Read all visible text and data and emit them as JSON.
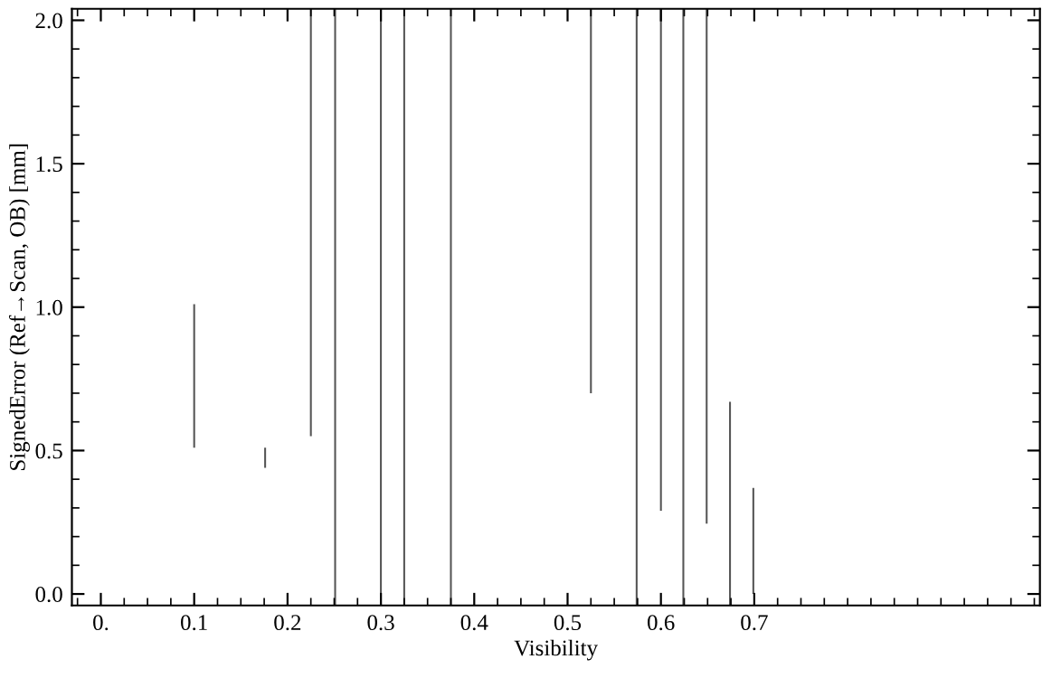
{
  "chart_data": {
    "type": "bar",
    "xlabel": "Visibility",
    "ylabel": "SignedError (Ref→Scan, OB) [mm]",
    "x": [
      0.1,
      0.176,
      0.225,
      0.251,
      0.3,
      0.325,
      0.375,
      0.525,
      0.574,
      0.6,
      0.624,
      0.649,
      0.674,
      0.699
    ],
    "base": [
      0.51,
      0.44,
      0.55,
      -0.04,
      -0.04,
      -0.04,
      -0.04,
      0.7,
      -0.04,
      0.29,
      -0.04,
      0.245,
      -0.04,
      0.0
    ],
    "values": [
      0.5,
      0.07,
      1.49,
      2.08,
      2.08,
      2.08,
      2.08,
      1.34,
      2.08,
      1.75,
      2.08,
      1.795,
      0.71,
      0.37
    ],
    "color": "#555555",
    "xlim": [
      -0.031,
      1.006
    ],
    "ylim": [
      -0.04,
      2.04
    ],
    "xticks": [
      {
        "value": 0,
        "label": "0."
      },
      0.1,
      0.2,
      0.3,
      0.4,
      0.5,
      0.6,
      0.7
    ],
    "yticks": [
      {
        "value": 0,
        "label": "0.0"
      },
      {
        "value": 0.5,
        "label": "0.5"
      },
      {
        "value": 1,
        "label": "1.0"
      },
      {
        "value": 1.5,
        "label": "1.5"
      },
      {
        "value": 2,
        "label": "2.0"
      }
    ],
    "grid": false
  }
}
